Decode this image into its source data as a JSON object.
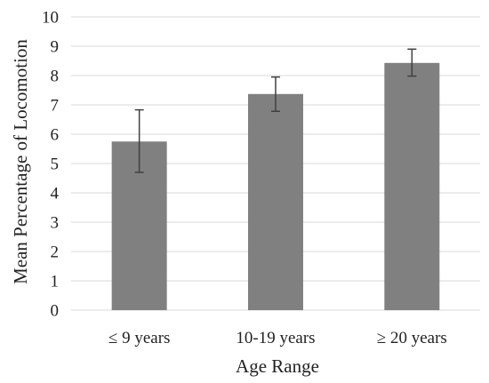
{
  "chart_data": {
    "type": "bar",
    "categories": [
      "≤ 9 years",
      "10-19 years",
      "≥ 20 years"
    ],
    "series": [
      {
        "values": [
          5.75,
          7.37,
          8.43
        ],
        "error_low": [
          4.7,
          6.78,
          7.98
        ],
        "error_high": [
          6.83,
          7.95,
          8.9
        ]
      }
    ],
    "xlabel": "Age Range",
    "ylabel": "Mean Percentage of Locomotion",
    "ylim": [
      0,
      10
    ],
    "yticks": [
      0,
      1,
      2,
      3,
      4,
      5,
      6,
      7,
      8,
      9,
      10
    ],
    "grid": true,
    "legend": "none",
    "colors": {
      "bar": "#808080",
      "grid": "#d9d9d9",
      "error_bar": "#404040",
      "text": "#222222"
    }
  }
}
